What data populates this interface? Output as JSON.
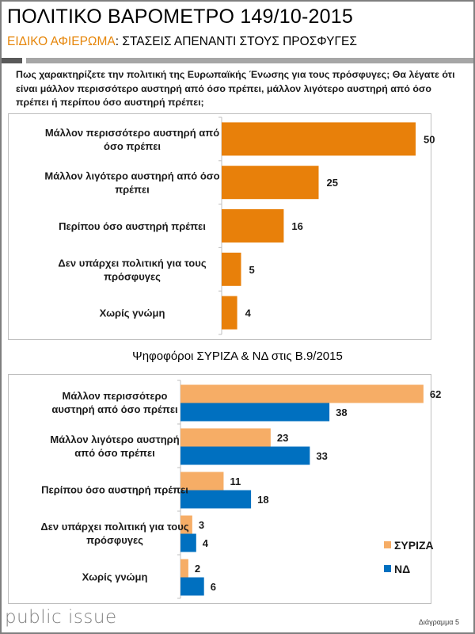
{
  "header": {
    "title": "ΠΟΛΙΤΙΚΟ ΒΑΡΟΜΕΤΡΟ 149/10-2015",
    "subtitle_accent": "ΕΙΔΙΚΟ ΑΦΙΕΡΩΜΑ",
    "subtitle_rest": ": ΣΤΑΣΕΙΣ ΑΠΕΝΑΝΤΙ ΣΤΟΥΣ ΠΡΟΣΦΥΓΕΣ"
  },
  "question": "Πως χαρακτηρίζετε την πολιτική της Ευρωπαϊκής Ένωσης για τους πρόσφυγες; Θα λέγατε ότι είναι μάλλον περισσότερο αυστηρή από όσο πρέπει, μάλλον λιγότερο αυστηρή από όσο πρέπει ή περίπου όσο αυστηρή πρέπει;",
  "colors": {
    "total": "#e8800a",
    "syriza": "#f6ad66",
    "nd": "#0070c0",
    "accent": "#e6860a"
  },
  "chart_data": [
    {
      "type": "bar",
      "orientation": "horizontal",
      "title": "",
      "categories": [
        [
          "Μάλλον περισσότερο αυστηρή από",
          "όσο πρέπει"
        ],
        [
          "Μάλλον λιγότερο αυστηρή από όσο",
          "πρέπει"
        ],
        [
          "Περίπου όσο αυστηρή πρέπει"
        ],
        [
          "Δεν υπάρχει πολιτική για τους",
          "πρόσφυγες"
        ],
        [
          "Χωρίς γνώμη"
        ]
      ],
      "values": [
        50,
        25,
        16,
        5,
        4
      ],
      "xlim": [
        0,
        55
      ],
      "data_labels": [
        "50",
        "25",
        "16",
        "5",
        "4"
      ],
      "grid": false,
      "legend": "none"
    },
    {
      "type": "bar",
      "orientation": "horizontal",
      "title": "Ψηφοφόροι ΣΥΡΙΖΑ & ΝΔ στις Β.9/2015",
      "categories": [
        [
          "Μάλλον περισσότερο",
          "αυστηρή από όσο πρέπει"
        ],
        [
          "Μάλλον λιγότερο αυστηρή",
          "από όσο πρέπει"
        ],
        [
          "Περίπου όσο αυστηρή πρέπει"
        ],
        [
          "Δεν υπάρχει πολιτική για τους",
          "πρόσφυγες"
        ],
        [
          "Χωρίς γνώμη"
        ]
      ],
      "series": [
        {
          "name": "ΣΥΡΙΖΑ",
          "values": [
            62,
            23,
            11,
            3,
            2
          ]
        },
        {
          "name": "ΝΔ",
          "values": [
            38,
            33,
            18,
            4,
            6
          ]
        }
      ],
      "xlim": [
        0,
        65
      ],
      "grid": false,
      "legend": "bottom-right"
    }
  ],
  "footer": {
    "logo": "public issue",
    "diagram_label": "Διάγραμμα 5"
  }
}
